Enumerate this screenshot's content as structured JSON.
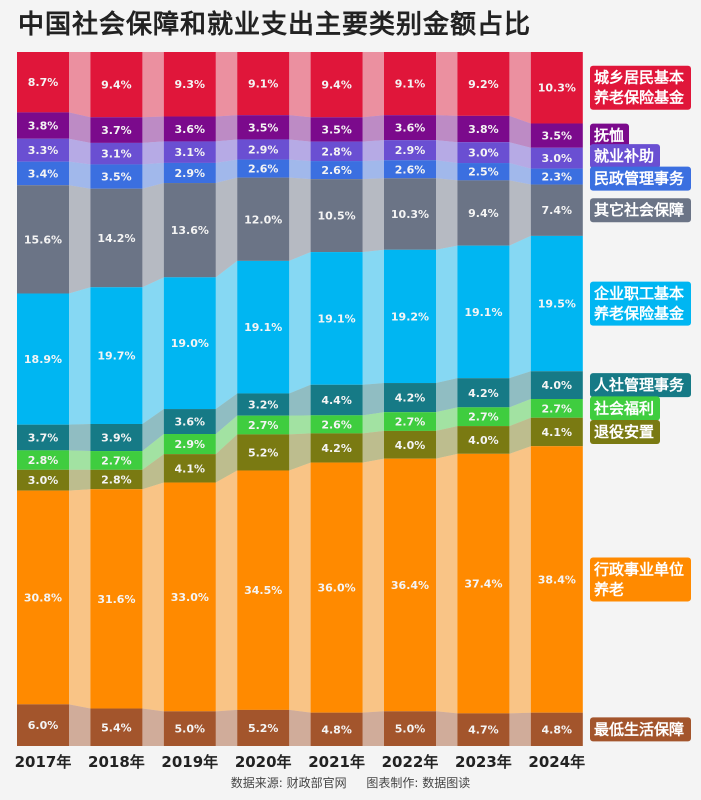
{
  "title": "中国社会保障和就业支出主要类别金额占比",
  "footer": {
    "source": "数据来源: 财政部官网",
    "maker": "图表制作: 数据图读"
  },
  "chart_data": {
    "type": "bar",
    "stacked": true,
    "normalized": true,
    "title": "中国社会保障和就业支出主要类别金额占比",
    "categories": [
      "2017年",
      "2018年",
      "2019年",
      "2020年",
      "2021年",
      "2022年",
      "2023年",
      "2024年"
    ],
    "ylim": [
      0,
      100
    ],
    "grid": false,
    "legend_placement": "right",
    "series": [
      {
        "name": "城乡居民基本养老保险基金",
        "color": "#e0163a",
        "values": [
          8.7,
          9.4,
          9.3,
          9.1,
          9.4,
          9.1,
          9.2,
          10.3
        ]
      },
      {
        "name": "抚恤",
        "color": "#7b0a8c",
        "values": [
          3.8,
          3.7,
          3.6,
          3.5,
          3.5,
          3.6,
          3.8,
          3.5
        ]
      },
      {
        "name": "就业补助",
        "color": "#6a4fd2",
        "values": [
          3.3,
          3.1,
          3.1,
          2.9,
          2.8,
          2.9,
          3.0,
          3.0
        ]
      },
      {
        "name": "民政管理事务",
        "color": "#3b6fe0",
        "values": [
          3.4,
          3.5,
          2.9,
          2.6,
          2.6,
          2.6,
          2.5,
          2.3
        ]
      },
      {
        "name": "其它社会保障",
        "color": "#6b7486",
        "values": [
          15.6,
          14.2,
          13.6,
          12.0,
          10.5,
          10.3,
          9.4,
          7.4
        ]
      },
      {
        "name": "企业职工基本养老保险基金",
        "color": "#00b6f2",
        "values": [
          18.9,
          19.7,
          19.0,
          19.1,
          19.1,
          19.2,
          19.1,
          19.5
        ]
      },
      {
        "name": "人社管理事务",
        "color": "#167a86",
        "values": [
          3.7,
          3.9,
          3.6,
          3.2,
          4.4,
          4.2,
          4.2,
          4.0
        ]
      },
      {
        "name": "社会福利",
        "color": "#3fcd3f",
        "values": [
          2.8,
          2.7,
          2.9,
          2.7,
          2.6,
          2.7,
          2.7,
          2.7
        ]
      },
      {
        "name": "退役安置",
        "color": "#7a7a12",
        "values": [
          3.0,
          2.8,
          4.1,
          5.2,
          4.2,
          4.0,
          4.0,
          4.1
        ]
      },
      {
        "name": "行政事业单位养老",
        "color": "#ff8a00",
        "values": [
          30.8,
          31.6,
          33.0,
          34.5,
          36.0,
          36.4,
          37.4,
          38.4
        ]
      },
      {
        "name": "最低生活保障",
        "color": "#a3552c",
        "values": [
          6.0,
          5.4,
          5.0,
          5.2,
          4.8,
          5.0,
          4.7,
          4.8
        ]
      }
    ],
    "legend_lines": [
      [
        "城乡居民基本",
        "养老保险基金"
      ],
      [
        "抚恤"
      ],
      [
        "就业补助"
      ],
      [
        "民政管理事务"
      ],
      [
        "其它社会保障"
      ],
      [
        "企业职工基本",
        "养老保险基金"
      ],
      [
        "人社管理事务"
      ],
      [
        "社会福利"
      ],
      [
        "退役安置"
      ],
      [
        "行政事业单位",
        "养老"
      ],
      [
        "最低生活保障"
      ]
    ]
  }
}
